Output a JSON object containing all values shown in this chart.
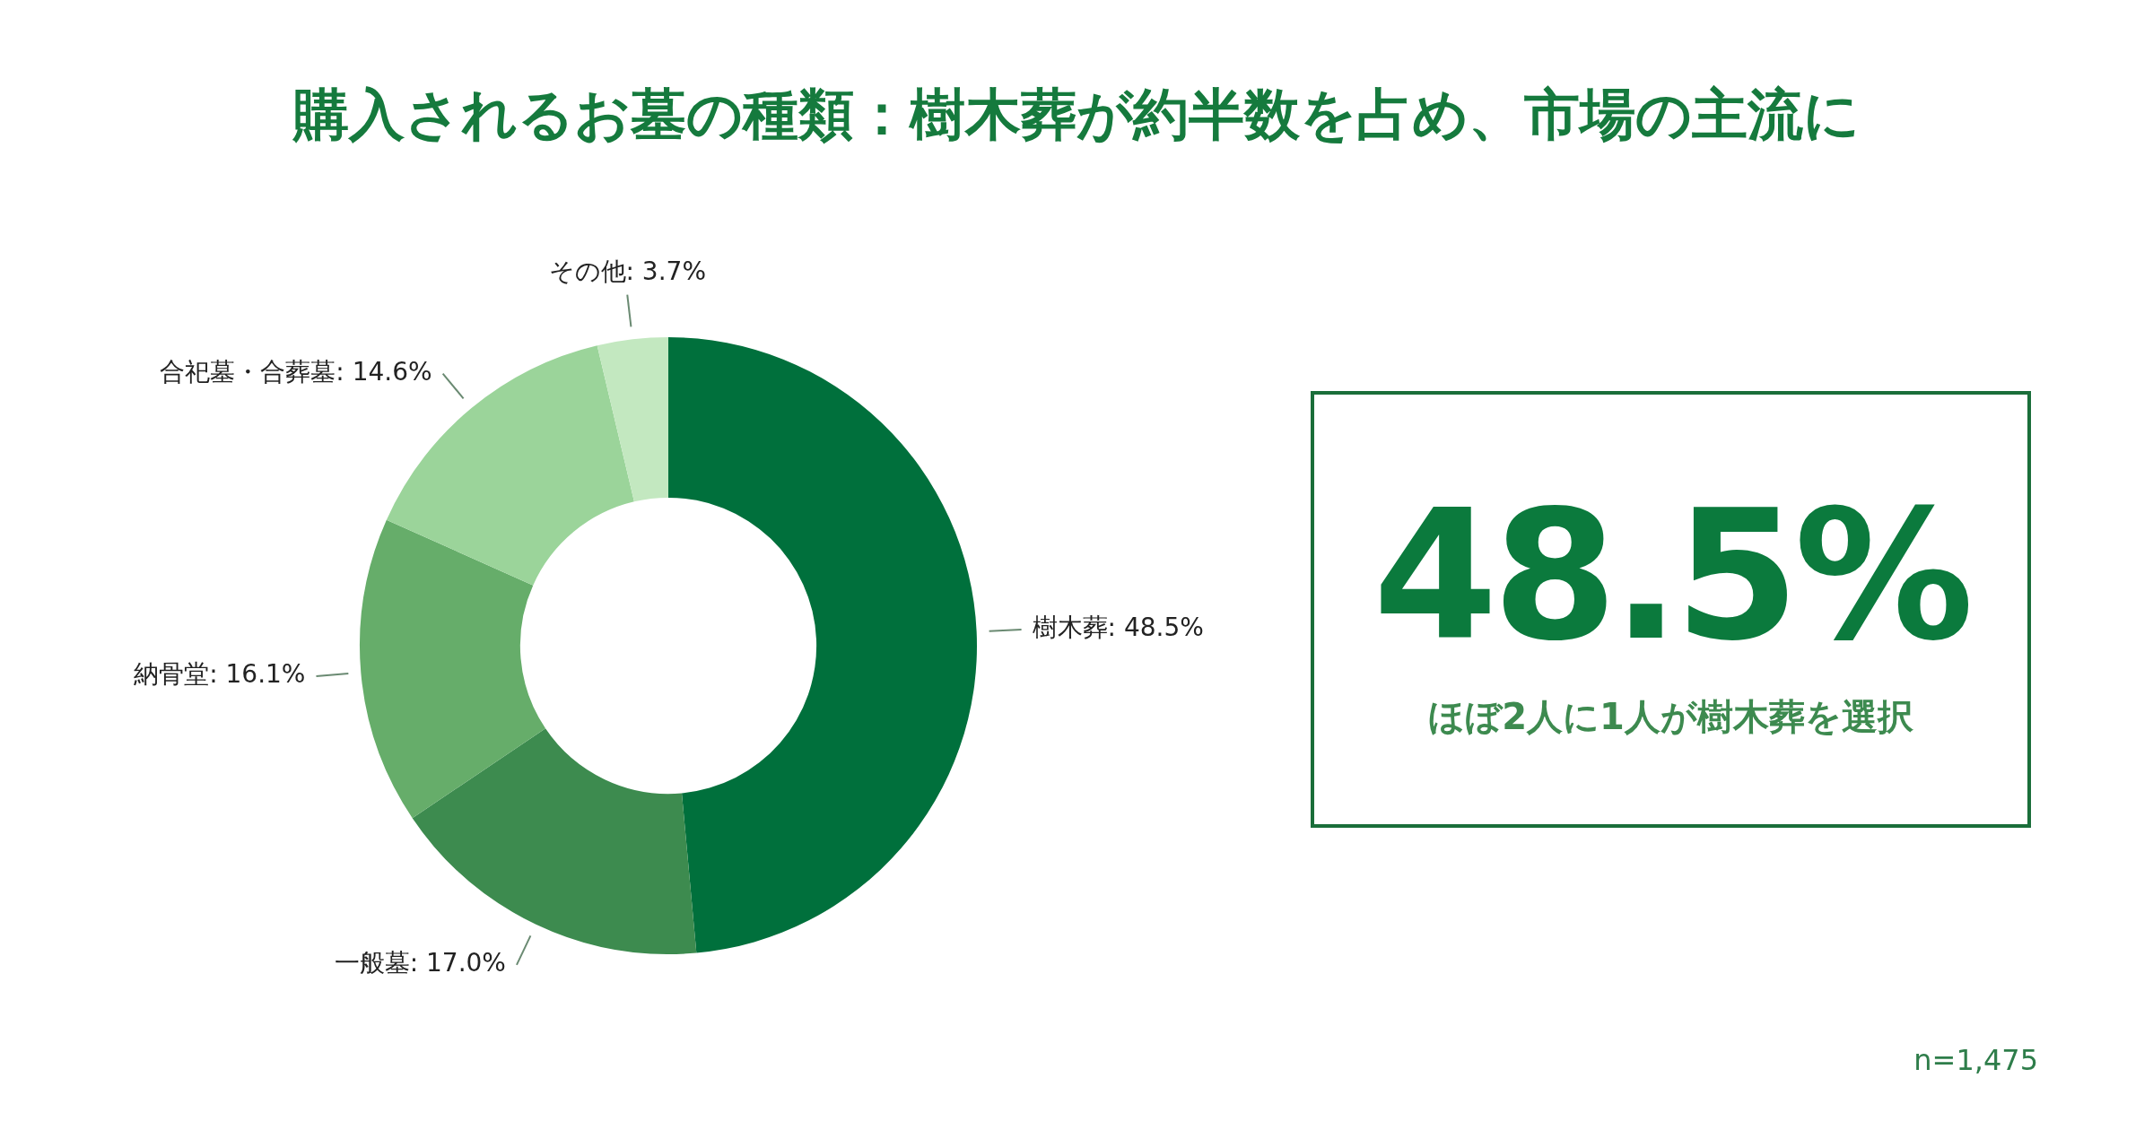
{
  "chart_data": {
    "type": "donut",
    "title": "購入されるお墓の種類：樹木葬が約半数を占め、市場の主流に",
    "categories": [
      "樹木葬",
      "一般墓",
      "納骨堂",
      "合祀墓・合葬墓",
      "その他"
    ],
    "values": [
      48.5,
      17.0,
      16.1,
      14.6,
      3.7
    ],
    "value_labels": [
      "48.5%",
      "17.0%",
      "16.1%",
      "14.6%",
      "3.7%"
    ],
    "colors": [
      "#00703c",
      "#3d8b4f",
      "#66ad6a",
      "#9bd49a",
      "#c3e8c0"
    ],
    "legend": false,
    "annotations": [
      "48.5%",
      "ほぼ2人に1人が樹木葬を選択",
      "n=1,475"
    ]
  }
}
